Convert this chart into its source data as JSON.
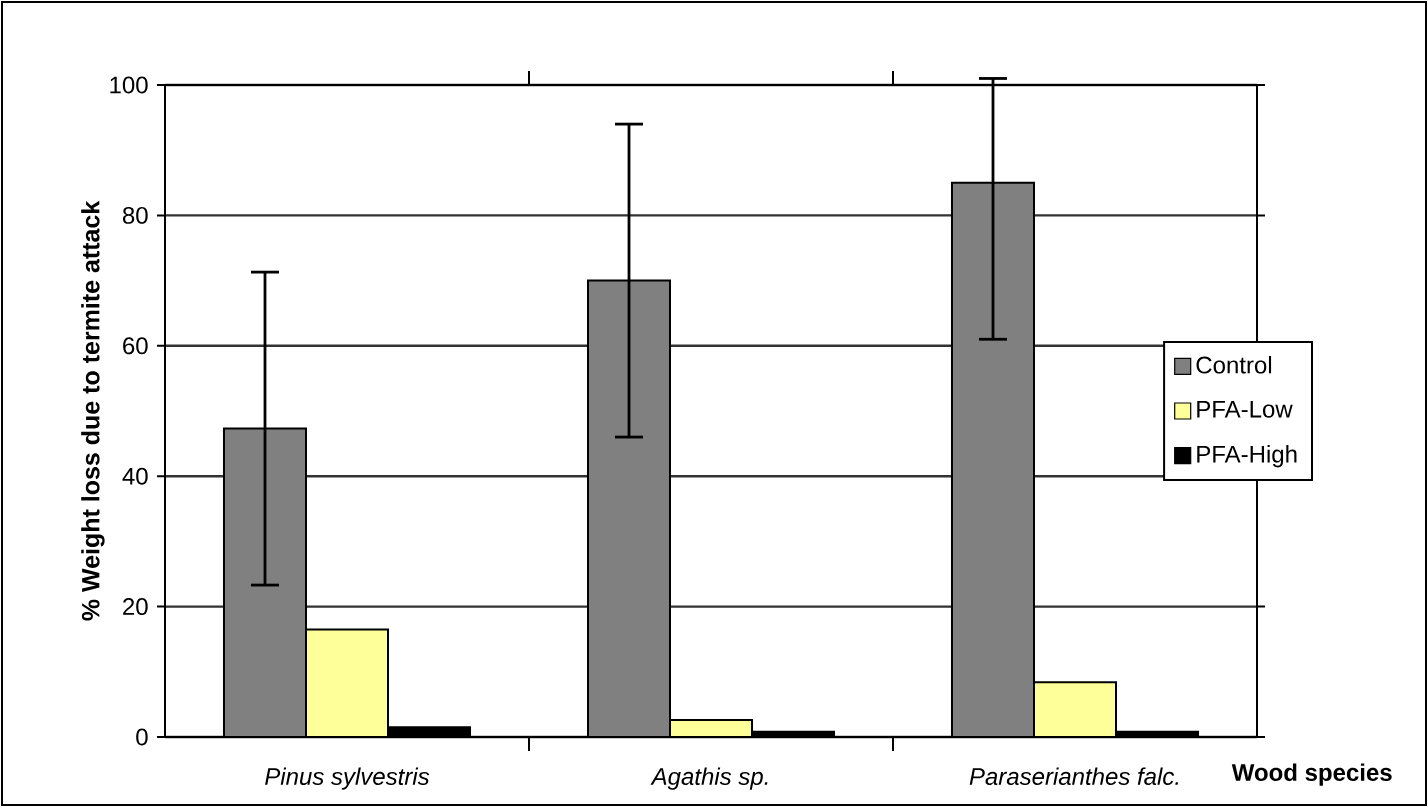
{
  "chart_data": {
    "type": "bar",
    "xlabel": "**Wood species**",
    "ylabel": "% Weight loss due to termite attack",
    "categories": [
      "*Pinus sylvestris*",
      "*Agathis sp.*",
      "*Paraserianthes falc.*"
    ],
    "series": [
      {
        "name": "Control",
        "color": "#808080",
        "values": [
          47.3,
          70,
          85
        ],
        "errors": [
          24,
          24,
          [
            61,
            101
          ]
        ]
      },
      {
        "name": "PFA-Low",
        "color": "#ffff99",
        "values": [
          16.5,
          2.6,
          8.4
        ]
      },
      {
        "name": "PFA-High",
        "color": "#000000",
        "values": [
          1.5,
          0.8,
          0.8
        ]
      }
    ],
    "ylim": [
      0,
      100
    ],
    "yticks": [
      0,
      20,
      40,
      60,
      80,
      100
    ],
    "grid": "y",
    "legend": "right"
  }
}
